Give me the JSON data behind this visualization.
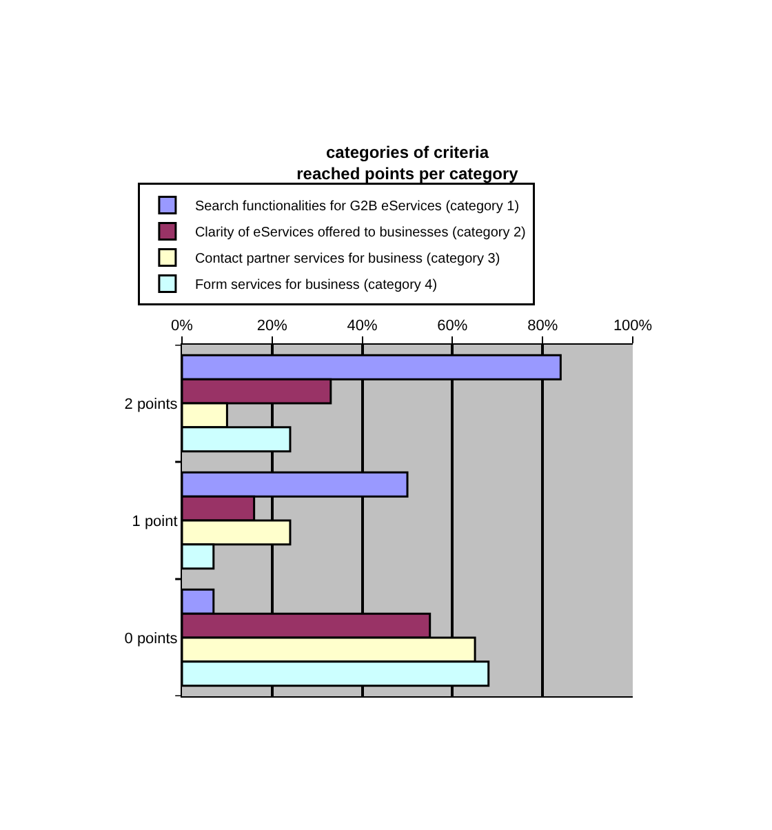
{
  "chart_data": {
    "type": "bar",
    "orientation": "horizontal",
    "title": "categories of criteria\nreached points per category",
    "categories": [
      "2 points",
      "1 point",
      "0 points"
    ],
    "series": [
      {
        "name": "Search functionalities for G2B eServices (category 1)",
        "color": "#9999ff",
        "values": [
          84,
          50,
          7
        ]
      },
      {
        "name": "Clarity of eServices offered to businesses (category 2)",
        "color": "#993366",
        "values": [
          33,
          16,
          55
        ]
      },
      {
        "name": "Contact partner services for business (category 3)",
        "color": "#ffffcc",
        "values": [
          10,
          24,
          65
        ]
      },
      {
        "name": "Form services for business (category 4)",
        "color": "#ccffff",
        "values": [
          24,
          7,
          68
        ]
      }
    ],
    "xlim": [
      0,
      100
    ],
    "xticks": [
      {
        "value": 0,
        "label": "0%"
      },
      {
        "value": 20,
        "label": "20%"
      },
      {
        "value": 40,
        "label": "40%"
      },
      {
        "value": 60,
        "label": "60%"
      },
      {
        "value": 80,
        "label": "80%"
      },
      {
        "value": 100,
        "label": "100%"
      }
    ],
    "grid": "x",
    "legend": "top"
  }
}
